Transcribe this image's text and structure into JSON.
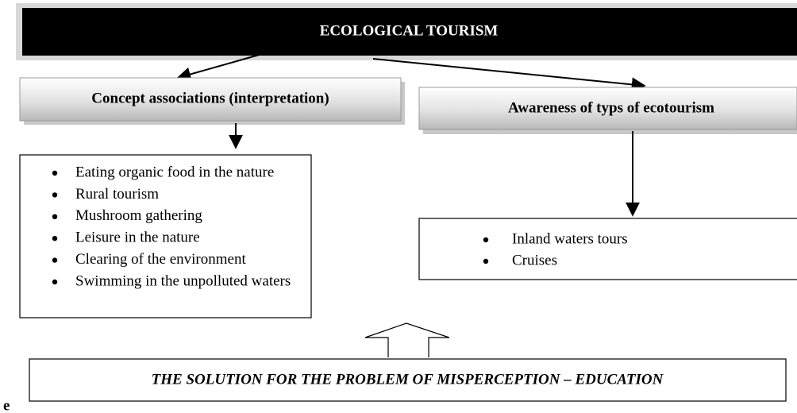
{
  "title": "ECOLOGICAL TOURISM",
  "left": {
    "heading": "Concept associations (interpretation)",
    "items": [
      "Eating organic food in the nature",
      "Rural tourism",
      "Mushroom gathering",
      "Leisure in the nature",
      "Clearing of the environment",
      "Swimming in the unpolluted waters"
    ]
  },
  "right": {
    "heading": "Awareness of typs of ecotourism",
    "items": [
      "Inland waters tours",
      "Cruises"
    ]
  },
  "solution": "THE SOLUTION FOR THE PROBLEM OF MISPERCEPTION – EDUCATION",
  "fragment": "e"
}
